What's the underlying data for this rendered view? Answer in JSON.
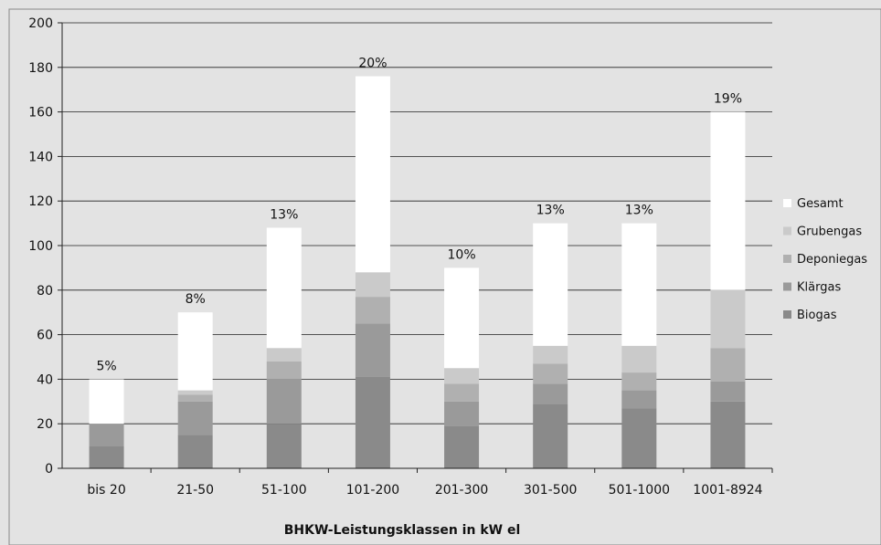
{
  "chart_data": {
    "type": "bar",
    "stacked": true,
    "xlabel": "BHKW-Leistungsklassen in kW el",
    "ylabel": "",
    "ylim": [
      0,
      200
    ],
    "yticks": [
      0,
      20,
      40,
      60,
      80,
      100,
      120,
      140,
      160,
      180,
      200
    ],
    "grid": true,
    "legend_position": "right",
    "categories": [
      "bis 20",
      "21-50",
      "51-100",
      "101-200",
      "201-300",
      "301-500",
      "501-1000",
      "1001-8924"
    ],
    "series": [
      {
        "name": "Biogas",
        "color": "#8a8a8a",
        "values": [
          10,
          15,
          20,
          41,
          19,
          29,
          27,
          30
        ]
      },
      {
        "name": "Klärgas",
        "color": "#9a9a9a",
        "values": [
          10,
          15,
          20,
          24,
          11,
          9,
          8,
          9
        ]
      },
      {
        "name": "Deponiegas",
        "color": "#b0b0b0",
        "values": [
          0,
          3,
          8,
          12,
          8,
          9,
          8,
          15
        ]
      },
      {
        "name": "Grubengas",
        "color": "#cacaca",
        "values": [
          0,
          2,
          6,
          11,
          7,
          8,
          12,
          26
        ]
      },
      {
        "name": "Gesamt",
        "color": "#ffffff",
        "values": [
          20,
          35,
          54,
          88,
          45,
          55,
          55,
          80
        ]
      }
    ],
    "totals": [
      40,
      70,
      108,
      176,
      90,
      110,
      110,
      160
    ],
    "data_labels": [
      "5%",
      "8%",
      "13%",
      "20%",
      "10%",
      "13%",
      "13%",
      "19%"
    ]
  }
}
